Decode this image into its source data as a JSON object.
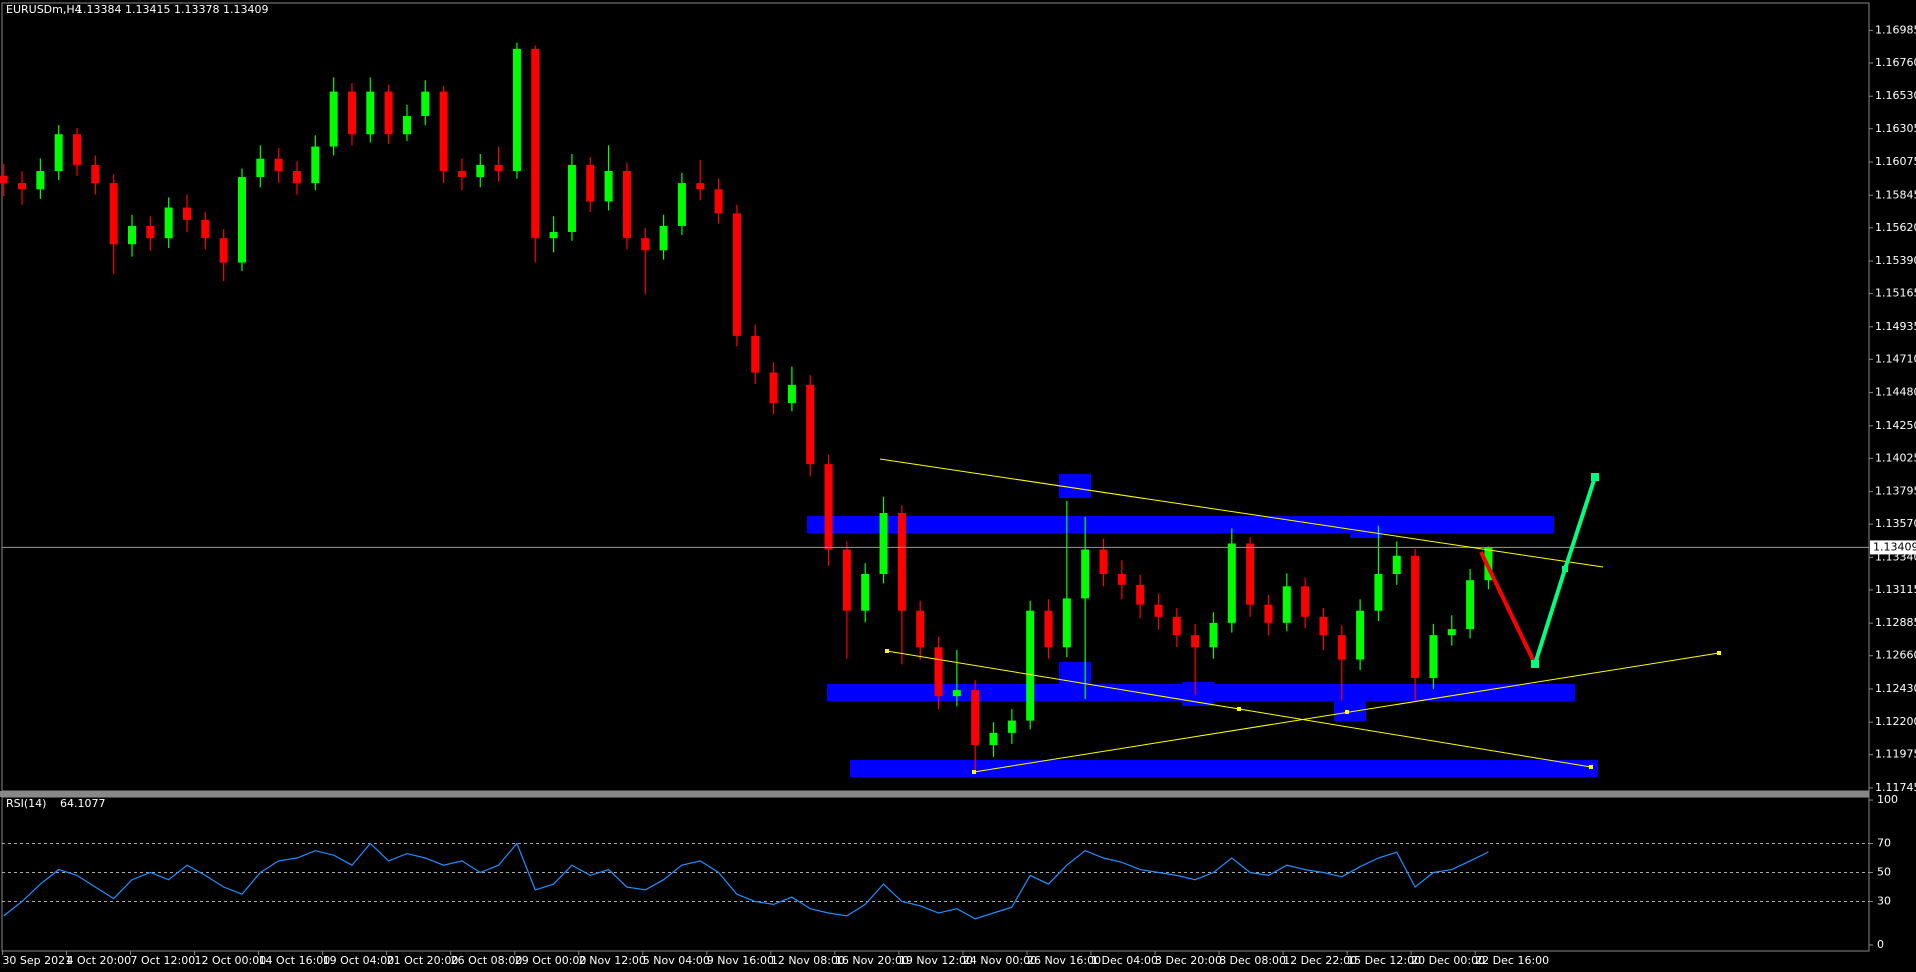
{
  "chart_data": [
    {
      "type": "candlestick",
      "title": "EURUSDm,H4",
      "quote": [
        1.13384,
        1.13415,
        1.13378,
        1.13409
      ],
      "up_color": "#00ff00",
      "down_color": "#ff0000",
      "open": [
        1.1598,
        1.15929,
        1.15886,
        1.16013,
        1.16267,
        1.16055,
        1.15929,
        1.15506,
        1.15633,
        1.15548,
        1.1576,
        1.15675,
        1.15548,
        1.15379,
        1.15971,
        1.16098,
        1.16013,
        1.15929,
        1.16182,
        1.16562,
        1.16267,
        1.16562,
        1.16267,
        1.16393,
        1.16562,
        1.16013,
        1.15971,
        1.16055,
        1.16013,
        1.16858,
        1.15548,
        1.15591,
        1.16055,
        1.15802,
        1.16013,
        1.15548,
        1.15464,
        1.15633,
        1.15929,
        1.15886,
        1.1572,
        1.14872,
        1.14619,
        1.14408,
        1.14534,
        1.13985,
        1.13394,
        1.12971,
        1.13225,
        1.13647,
        1.12971,
        1.12718,
        1.1238,
        1.12422,
        1.12042,
        1.12126,
        1.12211,
        1.12971,
        1.12718,
        1.13056,
        1.13394,
        1.13225,
        1.1315,
        1.13013,
        1.12929,
        1.12802,
        1.12718,
        1.12887,
        1.13436,
        1.13013,
        1.12887,
        1.1314,
        1.12929,
        1.12802,
        1.12633,
        1.12971,
        1.13225,
        1.13351,
        1.12506,
        1.12802,
        1.12844,
        1.13182
      ],
      "high": [
        1.1606,
        1.1601,
        1.161,
        1.1633,
        1.1631,
        1.1612,
        1.1599,
        1.1571,
        1.157,
        1.1583,
        1.1585,
        1.1573,
        1.1561,
        1.1603,
        1.1619,
        1.1617,
        1.1608,
        1.1626,
        1.1666,
        1.1662,
        1.1666,
        1.1661,
        1.1647,
        1.1664,
        1.166,
        1.161,
        1.1613,
        1.1618,
        1.169,
        1.1688,
        1.157,
        1.1613,
        1.1611,
        1.1619,
        1.1607,
        1.1562,
        1.1571,
        1.16,
        1.1609,
        1.1596,
        1.1578,
        1.1495,
        1.1469,
        1.1466,
        1.146,
        1.1405,
        1.1345,
        1.133,
        1.1376,
        1.137,
        1.1304,
        1.1279,
        1.127,
        1.1249,
        1.122,
        1.1229,
        1.1304,
        1.1305,
        1.1373,
        1.1362,
        1.1347,
        1.1332,
        1.1322,
        1.1309,
        1.1299,
        1.1288,
        1.1296,
        1.1354,
        1.1348,
        1.1308,
        1.1323,
        1.132,
        1.1299,
        1.1287,
        1.1305,
        1.1356,
        1.1345,
        1.134,
        1.1288,
        1.1294,
        1.1326,
        1.13415
      ],
      "low": [
        1.1584,
        1.1578,
        1.1582,
        1.1595,
        1.1598,
        1.1585,
        1.153,
        1.1542,
        1.1546,
        1.1548,
        1.1559,
        1.1547,
        1.1525,
        1.1532,
        1.159,
        1.1593,
        1.1585,
        1.1588,
        1.1612,
        1.1619,
        1.1621,
        1.162,
        1.1622,
        1.1633,
        1.1593,
        1.1588,
        1.159,
        1.1594,
        1.1596,
        1.1538,
        1.1545,
        1.1553,
        1.1573,
        1.1574,
        1.1547,
        1.1516,
        1.154,
        1.1557,
        1.1581,
        1.1565,
        1.148,
        1.1454,
        1.1433,
        1.1435,
        1.139,
        1.1328,
        1.1264,
        1.1289,
        1.1316,
        1.126,
        1.1263,
        1.1229,
        1.1231,
        1.1185,
        1.1196,
        1.1205,
        1.1215,
        1.1264,
        1.1265,
        1.1236,
        1.1314,
        1.1305,
        1.1292,
        1.1284,
        1.1272,
        1.1239,
        1.1264,
        1.1282,
        1.1293,
        1.128,
        1.1283,
        1.1285,
        1.127,
        1.1235,
        1.1256,
        1.129,
        1.1315,
        1.1235,
        1.1243,
        1.1273,
        1.1278,
        1.1312
      ],
      "close": [
        1.15929,
        1.15886,
        1.16013,
        1.16267,
        1.16055,
        1.15929,
        1.15506,
        1.15633,
        1.15548,
        1.1576,
        1.15675,
        1.15548,
        1.15379,
        1.15971,
        1.16098,
        1.16013,
        1.15929,
        1.16182,
        1.16562,
        1.16267,
        1.16562,
        1.16267,
        1.16393,
        1.16562,
        1.16013,
        1.15971,
        1.16055,
        1.16013,
        1.16858,
        1.15548,
        1.15591,
        1.16055,
        1.15802,
        1.16013,
        1.15548,
        1.15464,
        1.15633,
        1.15929,
        1.15886,
        1.1572,
        1.14872,
        1.14619,
        1.14408,
        1.14534,
        1.13985,
        1.13394,
        1.12971,
        1.13225,
        1.13647,
        1.12971,
        1.12718,
        1.1238,
        1.12422,
        1.12042,
        1.12126,
        1.12211,
        1.12971,
        1.12718,
        1.13056,
        1.13394,
        1.13225,
        1.1315,
        1.13013,
        1.12929,
        1.12802,
        1.12718,
        1.12887,
        1.13436,
        1.13013,
        1.12887,
        1.1314,
        1.12929,
        1.12802,
        1.12633,
        1.12971,
        1.13225,
        1.13351,
        1.12506,
        1.12802,
        1.12844,
        1.13182,
        1.13409
      ],
      "ylim": [
        1.11724,
        1.17168
      ],
      "yticks": [
        1.16985,
        {
          "value": 1.1676,
          "label": "1.16760"
        },
        {
          "value": 1.1653,
          "label": "1.16530"
        },
        1.16305,
        1.16075,
        1.15845,
        {
          "value": 1.1562,
          "label": "1.15620"
        },
        {
          "value": 1.1539,
          "label": "1.15390"
        },
        1.15165,
        1.14935,
        {
          "value": 1.1471,
          "label": "1.14710"
        },
        {
          "value": 1.1448,
          "label": "1.14480"
        },
        {
          "value": 1.1425,
          "label": "1.14250"
        },
        1.14025,
        1.13795,
        {
          "value": 1.1357,
          "label": "1.13570"
        },
        {
          "value": 1.1334,
          "label": "1.13340"
        },
        1.13115,
        1.12885,
        {
          "value": 1.1266,
          "label": "1.12660"
        },
        {
          "value": 1.1243,
          "label": "1.12430"
        },
        {
          "value": 1.122,
          "label": "1.12200"
        },
        1.11975,
        1.11745
      ],
      "xtick_labels": [
        "30 Sep 2021",
        "4 Oct 20:00",
        "7 Oct 12:00",
        "12 Oct 00:00",
        "14 Oct 16:00",
        "19 Oct 04:00",
        "21 Oct 20:00",
        "26 Oct 08:00",
        "29 Oct 00:00",
        "2 Nov 12:00",
        "5 Nov 04:00",
        "9 Nov 16:00",
        "12 Nov 08:00",
        "16 Nov 20:00",
        "19 Nov 12:00",
        "24 Nov 00:00",
        "26 Nov 16:00",
        "1 Dec 04:00",
        "3 Dec 20:00",
        "8 Dec 08:00",
        "12 Dec 22:00",
        "15 Dec 12:00",
        "20 Dec 00:00",
        "22 Dec 16:00"
      ]
    },
    {
      "type": "line",
      "title": "RSI(14)",
      "color": "#1e90ff",
      "values": [
        20,
        30,
        42,
        52,
        48,
        40,
        32,
        45,
        50,
        45,
        55,
        48,
        40,
        35,
        50,
        58,
        60,
        65,
        62,
        55,
        70,
        58,
        63,
        60,
        55,
        58,
        50,
        55,
        70,
        38,
        42,
        55,
        48,
        52,
        40,
        38,
        45,
        55,
        58,
        50,
        35,
        30,
        28,
        33,
        25,
        22,
        20,
        28,
        42,
        30,
        27,
        22,
        25,
        18,
        22,
        26,
        48,
        42,
        55,
        65,
        60,
        57,
        52,
        50,
        48,
        45,
        50,
        60,
        50,
        48,
        55,
        52,
        50,
        47,
        54,
        60,
        64,
        40,
        50,
        52,
        58,
        64.1077
      ],
      "ylim": [
        -4.2,
        102.1
      ],
      "yticks": [
        100,
        70,
        50,
        30,
        0
      ],
      "levels": [
        70,
        50,
        30
      ]
    }
  ]
}
